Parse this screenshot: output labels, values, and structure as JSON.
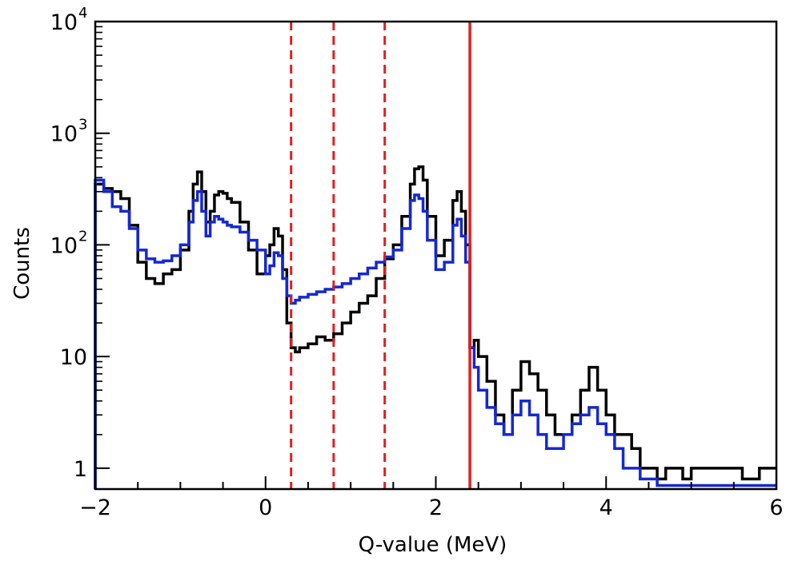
{
  "chart_data": {
    "type": "line",
    "xlabel": "Q-value (MeV)",
    "ylabel": "Counts",
    "xlim": [
      -2,
      6
    ],
    "ylim": [
      0.65,
      10000
    ],
    "yscale": "log",
    "x_ticks": [
      "−2",
      "0",
      "2",
      "4",
      "6"
    ],
    "x_tick_values": [
      -2,
      0,
      2,
      4,
      6
    ],
    "y_ticks": [
      {
        "value": 1,
        "base": "1",
        "exp": ""
      },
      {
        "value": 10,
        "base": "10",
        "exp": ""
      },
      {
        "value": 100,
        "base": "10",
        "exp": "2"
      },
      {
        "value": 1000,
        "base": "10",
        "exp": "3"
      },
      {
        "value": 10000,
        "base": "10",
        "exp": "4"
      }
    ],
    "grid": false,
    "vertical_lines": [
      {
        "x": 0.3,
        "style": "dashed",
        "color": "#e02020"
      },
      {
        "x": 0.8,
        "style": "dashed",
        "color": "#e02020"
      },
      {
        "x": 1.4,
        "style": "dashed",
        "color": "#e02020"
      },
      {
        "x": 2.4,
        "style": "solid",
        "color": "#e02020"
      }
    ],
    "series": [
      {
        "color": "#000000",
        "x": [
          -2.0,
          -1.9,
          -1.8,
          -1.7,
          -1.6,
          -1.5,
          -1.4,
          -1.3,
          -1.2,
          -1.1,
          -1.0,
          -0.9,
          -0.85,
          -0.8,
          -0.75,
          -0.7,
          -0.65,
          -0.6,
          -0.55,
          -0.5,
          -0.45,
          -0.4,
          -0.3,
          -0.2,
          -0.1,
          0.0,
          0.05,
          0.1,
          0.15,
          0.2,
          0.25,
          0.3,
          0.35,
          0.4,
          0.5,
          0.6,
          0.7,
          0.8,
          0.9,
          1.0,
          1.1,
          1.2,
          1.3,
          1.4,
          1.5,
          1.6,
          1.7,
          1.75,
          1.8,
          1.85,
          1.9,
          2.0,
          2.1,
          2.2,
          2.25,
          2.3,
          2.35,
          2.4,
          2.45,
          2.5,
          2.6,
          2.7,
          2.8,
          2.9,
          3.0,
          3.1,
          3.2,
          3.3,
          3.4,
          3.5,
          3.6,
          3.7,
          3.8,
          3.9,
          4.0,
          4.1,
          4.2,
          4.3,
          4.4,
          4.5,
          4.6,
          4.7,
          4.8,
          4.9,
          5.0,
          5.2,
          5.4,
          5.6,
          5.8,
          6.0
        ],
        "y": [
          350,
          320,
          300,
          260,
          150,
          70,
          50,
          45,
          55,
          60,
          90,
          200,
          350,
          450,
          300,
          160,
          200,
          280,
          300,
          290,
          260,
          240,
          160,
          90,
          55,
          80,
          100,
          140,
          120,
          60,
          20,
          12,
          11,
          12,
          13,
          15,
          14,
          16,
          20,
          25,
          30,
          35,
          50,
          75,
          100,
          180,
          350,
          480,
          500,
          380,
          180,
          80,
          110,
          250,
          300,
          200,
          100,
          12,
          14,
          10,
          6,
          3,
          2,
          5,
          9,
          7,
          5,
          3,
          2,
          2,
          3,
          5,
          8,
          5,
          3,
          2,
          2,
          1.5,
          1,
          1,
          0.8,
          1,
          1,
          0.8,
          1,
          1,
          1,
          0.8,
          1,
          1
        ]
      },
      {
        "color": "#1428d2",
        "x": [
          -2.0,
          -1.9,
          -1.8,
          -1.7,
          -1.6,
          -1.5,
          -1.4,
          -1.3,
          -1.2,
          -1.1,
          -1.0,
          -0.9,
          -0.85,
          -0.8,
          -0.75,
          -0.7,
          -0.65,
          -0.6,
          -0.55,
          -0.5,
          -0.45,
          -0.4,
          -0.3,
          -0.2,
          -0.1,
          0.0,
          0.05,
          0.1,
          0.15,
          0.2,
          0.25,
          0.3,
          0.35,
          0.4,
          0.5,
          0.6,
          0.7,
          0.8,
          0.9,
          1.0,
          1.1,
          1.2,
          1.3,
          1.4,
          1.5,
          1.6,
          1.7,
          1.75,
          1.8,
          1.85,
          1.9,
          2.0,
          2.1,
          2.2,
          2.25,
          2.3,
          2.35,
          2.4,
          2.45,
          2.5,
          2.6,
          2.7,
          2.8,
          2.9,
          3.0,
          3.1,
          3.2,
          3.3,
          3.4,
          3.5,
          3.6,
          3.7,
          3.8,
          3.9,
          4.0,
          4.1,
          4.2,
          4.3,
          4.4,
          4.5,
          4.6,
          4.7,
          4.8,
          4.9,
          5.0,
          5.2,
          5.4,
          5.6,
          5.8,
          6.0
        ],
        "y": [
          380,
          300,
          220,
          200,
          140,
          90,
          75,
          70,
          72,
          80,
          100,
          160,
          250,
          300,
          200,
          120,
          160,
          180,
          170,
          160,
          150,
          145,
          130,
          110,
          90,
          55,
          65,
          85,
          80,
          50,
          35,
          30,
          32,
          34,
          36,
          38,
          40,
          42,
          45,
          50,
          55,
          62,
          70,
          78,
          90,
          140,
          250,
          280,
          260,
          200,
          110,
          60,
          70,
          150,
          170,
          120,
          70,
          12,
          8,
          5,
          3.5,
          2.5,
          2,
          3,
          4,
          3,
          2,
          1.5,
          1.5,
          2,
          2.5,
          3,
          3.5,
          2.5,
          2,
          1.5,
          1,
          1,
          0.8,
          0.8,
          0.7,
          0.7,
          0.7,
          0.7,
          0.7,
          0.7,
          0.7,
          0.7,
          0.7,
          0.7
        ]
      }
    ]
  }
}
